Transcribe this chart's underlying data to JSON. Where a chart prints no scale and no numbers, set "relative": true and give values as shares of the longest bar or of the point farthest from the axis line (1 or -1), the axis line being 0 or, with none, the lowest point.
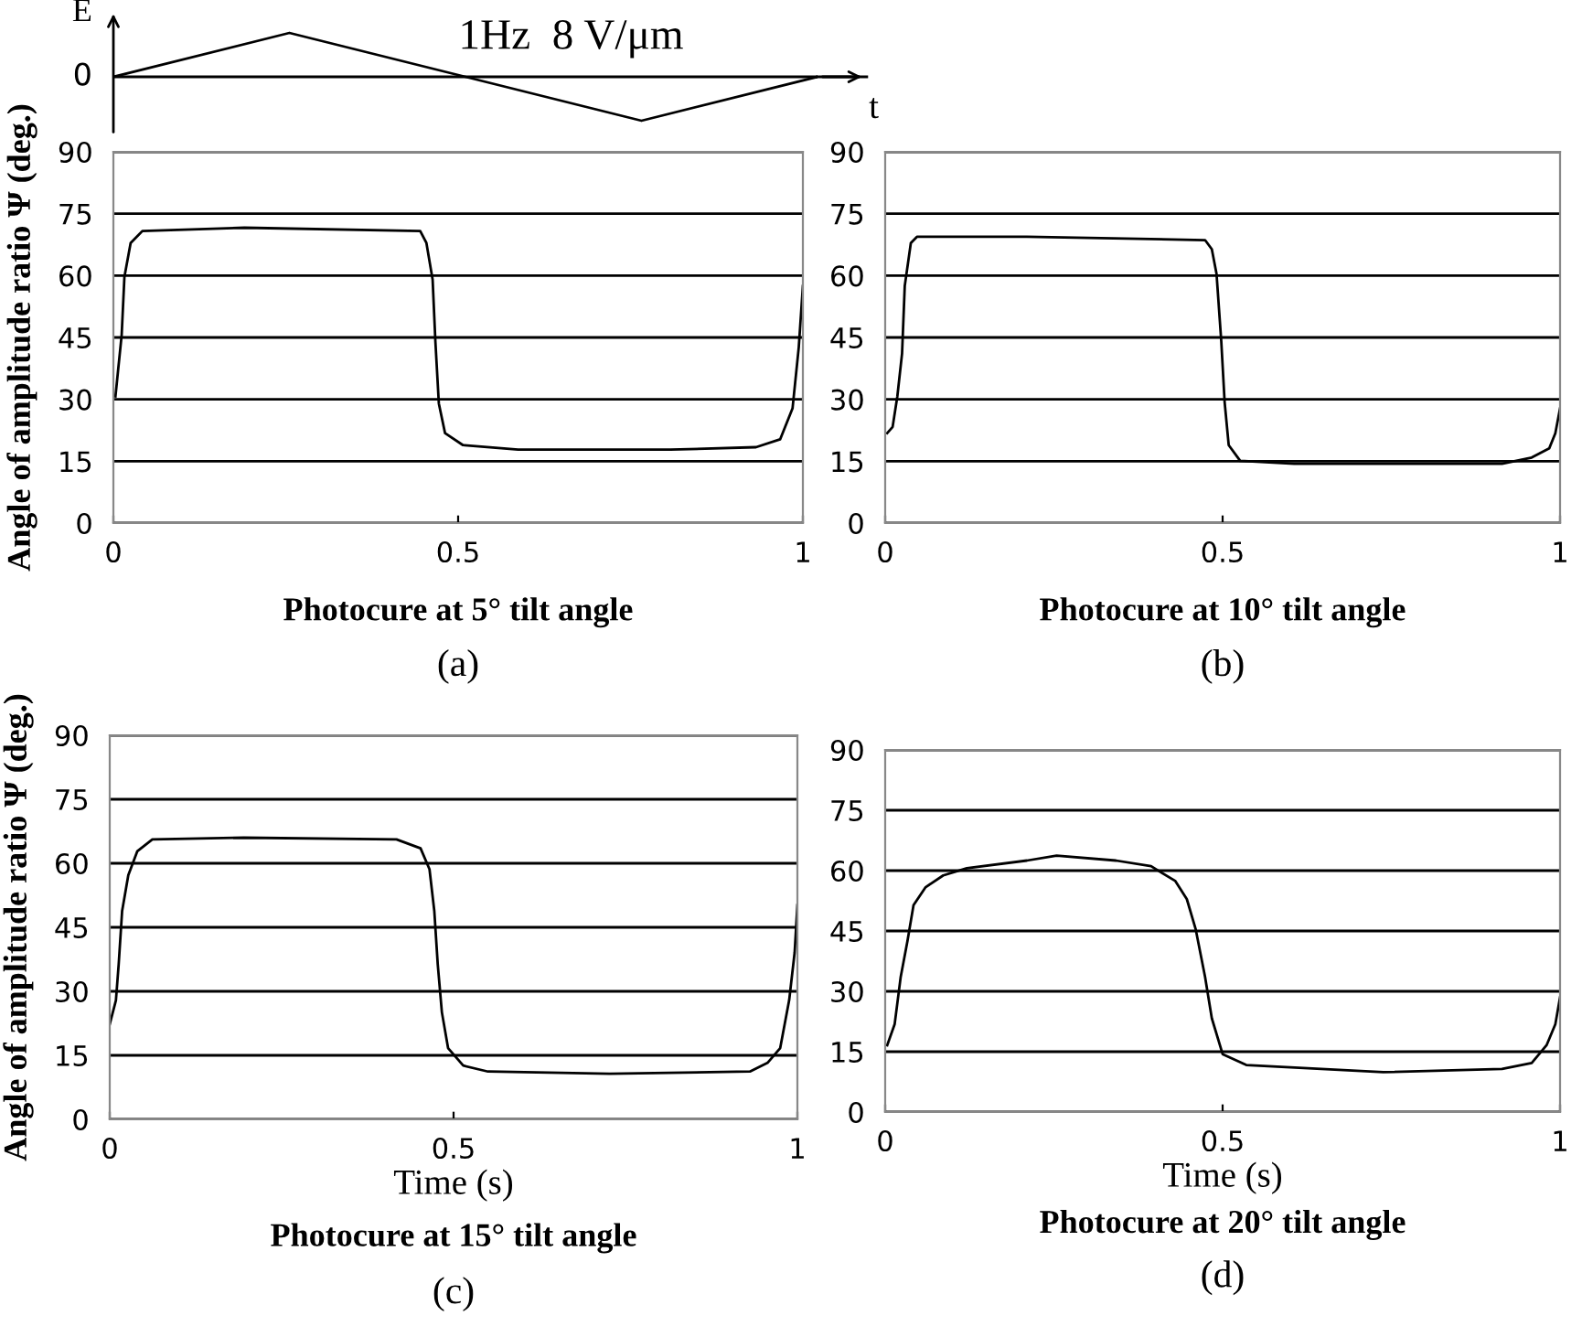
{
  "chart_data": [
    {
      "type": "line",
      "relative": true,
      "categories": [
        null,
        null,
        null,
        null,
        null
      ],
      "xlabel": "t",
      "ylabel": "E",
      "annotations": [
        "1Hz  8 V/μm",
        "0"
      ],
      "series": [
        {
          "color": "#000000",
          "values": [
            0,
            1,
            0,
            -1,
            0
          ]
        }
      ]
    },
    {
      "type": "line",
      "xlim": [
        0,
        1
      ],
      "ylim": [
        0,
        90
      ],
      "xticks": [
        0,
        0.5,
        1
      ],
      "yticks": [
        0,
        15,
        30,
        45,
        60,
        75,
        90
      ],
      "grid": "y",
      "ylabel": "Angle of amplitude ratio Ψ (deg.)",
      "annotations": [
        "Photocure at 5° tilt angle",
        "(a)"
      ],
      "series": [
        {
          "color": "#000000",
          "x": [
            0.003,
            0.012,
            0.016,
            0.025,
            0.042,
            0.19,
            0.445,
            0.454,
            0.463,
            0.467,
            0.472,
            0.481,
            0.507,
            0.587,
            0.808,
            0.932,
            0.967,
            0.985,
            0.994,
            1.0
          ],
          "values": [
            30.7,
            45.6,
            59.7,
            67.9,
            70.8,
            71.6,
            70.8,
            67.9,
            59,
            44,
            29,
            21.8,
            18.9,
            17.8,
            17.8,
            18.4,
            20.3,
            27.8,
            42.6,
            57.5
          ]
        }
      ]
    },
    {
      "type": "line",
      "xlim": [
        0,
        1
      ],
      "ylim": [
        0,
        90
      ],
      "xticks": [
        0,
        0.5,
        1
      ],
      "yticks": [
        0,
        15,
        30,
        45,
        60,
        75,
        90
      ],
      "grid": "y",
      "annotations": [
        "Photocure at 10° tilt angle",
        "(b)"
      ],
      "series": [
        {
          "color": "#000000",
          "x": [
            0.003,
            0.011,
            0.018,
            0.025,
            0.029,
            0.038,
            0.047,
            0.21,
            0.474,
            0.484,
            0.491,
            0.498,
            0.503,
            0.509,
            0.526,
            0.606,
            0.914,
            0.958,
            0.984,
            0.993,
            1.0
          ],
          "values": [
            21.8,
            23.3,
            30.7,
            41.1,
            57.5,
            67.9,
            69.4,
            69.4,
            68.6,
            66.4,
            60.4,
            44.1,
            29.3,
            18.9,
            15.1,
            14.4,
            14.4,
            15.9,
            18.1,
            21.8,
            27.8
          ]
        }
      ]
    },
    {
      "type": "line",
      "xlim": [
        0,
        1
      ],
      "ylim": [
        0,
        90
      ],
      "xticks": [
        0,
        0.5,
        1
      ],
      "yticks": [
        0,
        15,
        30,
        45,
        60,
        75,
        90
      ],
      "grid": "y",
      "xlabel": "Time (s)",
      "ylabel": "Angle of amplitude ratio Ψ (deg.)",
      "annotations": [
        "Photocure at 15° tilt angle",
        "(c)"
      ],
      "series": [
        {
          "color": "#000000",
          "x": [
            0.0,
            0.009,
            0.013,
            0.018,
            0.027,
            0.04,
            0.062,
            0.195,
            0.417,
            0.452,
            0.465,
            0.472,
            0.477,
            0.483,
            0.492,
            0.514,
            0.55,
            0.727,
            0.931,
            0.957,
            0.975,
            0.988,
            0.996,
            1.0
          ],
          "values": [
            22.3,
            27.9,
            36.3,
            48.8,
            57.2,
            62.8,
            65.6,
            66,
            65.6,
            63.5,
            58.6,
            48.8,
            36.3,
            25.1,
            16.7,
            12.6,
            11.2,
            10.7,
            11.2,
            13.3,
            16.7,
            27.9,
            39.1,
            50.2
          ]
        }
      ]
    },
    {
      "type": "line",
      "xlim": [
        0,
        1
      ],
      "ylim": [
        0,
        90
      ],
      "xticks": [
        0,
        0.5,
        1
      ],
      "yticks": [
        0,
        15,
        30,
        45,
        60,
        75,
        90
      ],
      "grid": "y",
      "xlabel": "Time (s)",
      "annotations": [
        "Photocure at 20° tilt angle",
        "(d)"
      ],
      "series": [
        {
          "color": "#000000",
          "x": [
            0.003,
            0.014,
            0.023,
            0.033,
            0.042,
            0.06,
            0.086,
            0.121,
            0.21,
            0.254,
            0.342,
            0.394,
            0.43,
            0.447,
            0.46,
            0.474,
            0.484,
            0.5,
            0.535,
            0.738,
            0.914,
            0.958,
            0.98,
            0.993,
            1.0
          ],
          "values": [
            16.6,
            21.8,
            33.6,
            42.5,
            51.4,
            55.9,
            58.8,
            60.6,
            62.5,
            63.7,
            62.5,
            61.1,
            57.4,
            52.9,
            45.5,
            33.6,
            23.3,
            14.4,
            11.7,
            9.9,
            10.7,
            12.2,
            16.6,
            21.8,
            28.5
          ]
        }
      ]
    }
  ]
}
